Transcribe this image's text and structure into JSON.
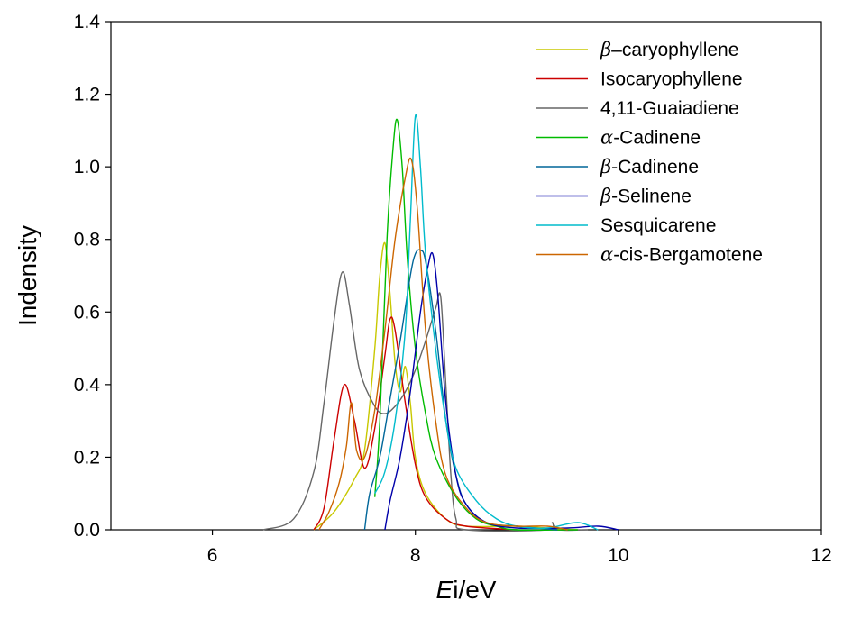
{
  "chart_data": {
    "type": "line",
    "xlabel_main": "E",
    "xlabel_rest": "i/eV",
    "ylabel": "Indensity",
    "xlim": [
      5,
      12
    ],
    "ylim": [
      0,
      1.4
    ],
    "xticks": [
      "6",
      "8",
      "10",
      "12"
    ],
    "yticks": [
      "0.0",
      "0.2",
      "0.4",
      "0.6",
      "0.8",
      "1.0",
      "1.2",
      "1.4"
    ],
    "grid": false,
    "legend_position": "top-right",
    "series": [
      {
        "name": "β–caryophyllene",
        "legend_symbol": "β",
        "legend_rest": "–caryophyllene",
        "color": "#c8c800",
        "points": [
          [
            7.0,
            0.0
          ],
          [
            7.2,
            0.05
          ],
          [
            7.4,
            0.14
          ],
          [
            7.5,
            0.22
          ],
          [
            7.6,
            0.5
          ],
          [
            7.65,
            0.7
          ],
          [
            7.7,
            0.79
          ],
          [
            7.75,
            0.65
          ],
          [
            7.8,
            0.46
          ],
          [
            7.85,
            0.38
          ],
          [
            7.9,
            0.45
          ],
          [
            7.95,
            0.35
          ],
          [
            8.0,
            0.2
          ],
          [
            8.1,
            0.1
          ],
          [
            8.3,
            0.03
          ],
          [
            8.5,
            0.01
          ],
          [
            9.0,
            0.01
          ],
          [
            9.3,
            0.005
          ],
          [
            9.6,
            0.0
          ]
        ]
      },
      {
        "name": "Isocaryophyllene",
        "legend_rest": "Isocaryophyllene",
        "color": "#cc0000",
        "points": [
          [
            7.0,
            0.0
          ],
          [
            7.1,
            0.06
          ],
          [
            7.2,
            0.25
          ],
          [
            7.3,
            0.4
          ],
          [
            7.4,
            0.3
          ],
          [
            7.5,
            0.17
          ],
          [
            7.6,
            0.28
          ],
          [
            7.7,
            0.48
          ],
          [
            7.75,
            0.58
          ],
          [
            7.8,
            0.55
          ],
          [
            7.9,
            0.35
          ],
          [
            8.0,
            0.18
          ],
          [
            8.1,
            0.09
          ],
          [
            8.3,
            0.03
          ],
          [
            8.5,
            0.01
          ],
          [
            9.0,
            0.0
          ]
        ]
      },
      {
        "name": "4,11-Guaiadiene",
        "legend_rest": "4,11-Guaiadiene",
        "color": "#666666",
        "points": [
          [
            6.5,
            0.0
          ],
          [
            6.8,
            0.03
          ],
          [
            7.0,
            0.16
          ],
          [
            7.1,
            0.35
          ],
          [
            7.2,
            0.58
          ],
          [
            7.28,
            0.71
          ],
          [
            7.35,
            0.62
          ],
          [
            7.45,
            0.44
          ],
          [
            7.6,
            0.34
          ],
          [
            7.7,
            0.32
          ],
          [
            7.8,
            0.34
          ],
          [
            7.9,
            0.38
          ],
          [
            8.0,
            0.44
          ],
          [
            8.1,
            0.52
          ],
          [
            8.2,
            0.61
          ],
          [
            8.25,
            0.64
          ],
          [
            8.3,
            0.4
          ],
          [
            8.35,
            0.15
          ],
          [
            8.4,
            0.03
          ],
          [
            8.5,
            0.0
          ],
          [
            9.3,
            0.0
          ],
          [
            9.35,
            0.02
          ],
          [
            9.4,
            0.0
          ],
          [
            9.7,
            0.0
          ]
        ]
      },
      {
        "name": "α-Cadinene",
        "legend_symbol": "α",
        "legend_rest": "-Cadinene",
        "color": "#00bb00",
        "points": [
          [
            7.6,
            0.09
          ],
          [
            7.65,
            0.3
          ],
          [
            7.72,
            0.8
          ],
          [
            7.78,
            1.05
          ],
          [
            7.82,
            1.13
          ],
          [
            7.87,
            1.0
          ],
          [
            7.92,
            0.75
          ],
          [
            8.0,
            0.5
          ],
          [
            8.1,
            0.32
          ],
          [
            8.2,
            0.2
          ],
          [
            8.4,
            0.09
          ],
          [
            8.6,
            0.03
          ],
          [
            8.8,
            0.01
          ],
          [
            9.0,
            0.0
          ],
          [
            9.6,
            0.0
          ]
        ]
      },
      {
        "name": "β-Cadinene",
        "legend_symbol": "β",
        "legend_rest": "-Cadinene",
        "color": "#006699",
        "points": [
          [
            7.5,
            0.0
          ],
          [
            7.55,
            0.1
          ],
          [
            7.65,
            0.2
          ],
          [
            7.75,
            0.36
          ],
          [
            7.85,
            0.52
          ],
          [
            7.95,
            0.7
          ],
          [
            8.0,
            0.76
          ],
          [
            8.05,
            0.77
          ],
          [
            8.1,
            0.74
          ],
          [
            8.2,
            0.55
          ],
          [
            8.3,
            0.3
          ],
          [
            8.4,
            0.15
          ],
          [
            8.5,
            0.07
          ],
          [
            8.7,
            0.02
          ],
          [
            9.0,
            0.01
          ],
          [
            9.4,
            0.0
          ]
        ]
      },
      {
        "name": "β-Selinene",
        "legend_symbol": "β",
        "legend_rest": "-Selinene",
        "color": "#0000aa",
        "points": [
          [
            7.7,
            0.0
          ],
          [
            7.75,
            0.08
          ],
          [
            7.85,
            0.2
          ],
          [
            7.95,
            0.38
          ],
          [
            8.05,
            0.6
          ],
          [
            8.12,
            0.72
          ],
          [
            8.17,
            0.76
          ],
          [
            8.22,
            0.65
          ],
          [
            8.3,
            0.35
          ],
          [
            8.4,
            0.15
          ],
          [
            8.5,
            0.07
          ],
          [
            8.7,
            0.02
          ],
          [
            9.0,
            0.005
          ],
          [
            9.5,
            0.005
          ],
          [
            9.8,
            0.01
          ],
          [
            10.0,
            0.0
          ]
        ]
      },
      {
        "name": "Sesquicarene",
        "legend_rest": "Sesquicarene",
        "color": "#00bbcc",
        "points": [
          [
            7.6,
            0.1
          ],
          [
            7.7,
            0.16
          ],
          [
            7.8,
            0.3
          ],
          [
            7.9,
            0.55
          ],
          [
            7.95,
            0.85
          ],
          [
            8.0,
            1.14
          ],
          [
            8.05,
            1.0
          ],
          [
            8.1,
            0.76
          ],
          [
            8.2,
            0.5
          ],
          [
            8.3,
            0.3
          ],
          [
            8.4,
            0.17
          ],
          [
            8.6,
            0.08
          ],
          [
            8.8,
            0.03
          ],
          [
            9.0,
            0.01
          ],
          [
            9.3,
            0.005
          ],
          [
            9.6,
            0.02
          ],
          [
            9.8,
            0.0
          ]
        ]
      },
      {
        "name": "α-cis-Bergamotene",
        "legend_symbol": "α",
        "legend_rest": "-cis-Bergamotene",
        "color": "#cc6600",
        "points": [
          [
            7.05,
            0.0
          ],
          [
            7.15,
            0.05
          ],
          [
            7.25,
            0.13
          ],
          [
            7.32,
            0.23
          ],
          [
            7.37,
            0.35
          ],
          [
            7.42,
            0.22
          ],
          [
            7.5,
            0.2
          ],
          [
            7.6,
            0.33
          ],
          [
            7.7,
            0.55
          ],
          [
            7.8,
            0.8
          ],
          [
            7.9,
            0.97
          ],
          [
            7.96,
            1.02
          ],
          [
            8.02,
            0.88
          ],
          [
            8.1,
            0.55
          ],
          [
            8.2,
            0.3
          ],
          [
            8.3,
            0.15
          ],
          [
            8.5,
            0.06
          ],
          [
            8.7,
            0.02
          ],
          [
            9.0,
            0.01
          ],
          [
            9.3,
            0.01
          ],
          [
            9.5,
            0.0
          ]
        ]
      }
    ]
  }
}
